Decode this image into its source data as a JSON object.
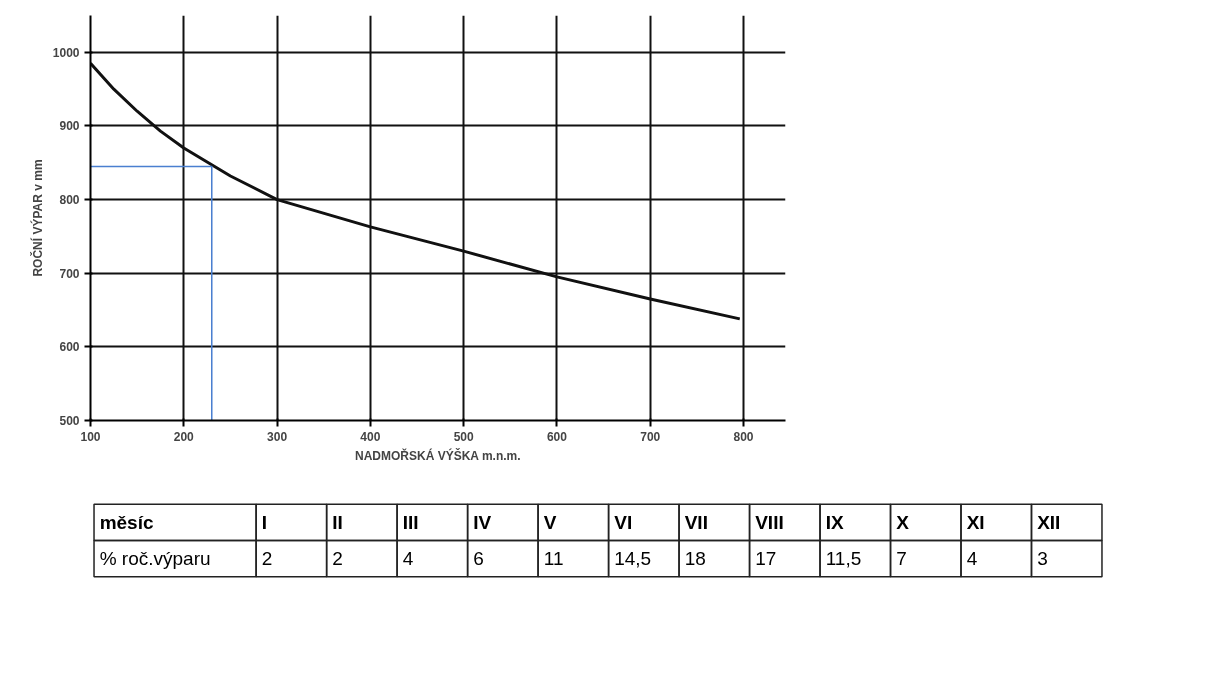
{
  "chart_data": [
    {
      "type": "line",
      "xlabel": "NADMOŘSKÁ VÝŠKA m.n.m.",
      "ylabel": "ROČNÍ VÝPAR v mm",
      "xlim": [
        100,
        845
      ],
      "ylim": [
        500,
        1050
      ],
      "xticks": [
        100,
        200,
        300,
        400,
        500,
        600,
        700,
        800
      ],
      "yticks": [
        500,
        600,
        700,
        800,
        900,
        1000
      ],
      "grid": true,
      "marker": "none",
      "line_style": "solid",
      "series": [
        {
          "color": "#111111",
          "x": [
            100,
            125,
            150,
            175,
            200,
            250,
            300,
            400,
            500,
            600,
            700,
            796
          ],
          "values": [
            985,
            950,
            920,
            893,
            870,
            832,
            800,
            763,
            730,
            695,
            665,
            638
          ]
        },
        {
          "color": "#4a7fd0",
          "x": [
            100,
            230,
            230
          ],
          "values": [
            845,
            845,
            500
          ]
        }
      ]
    },
    {
      "type": "other",
      "xlabel": "měsíc",
      "ylabel": "% roč.výparu",
      "categories": [
        "I",
        "II",
        "III",
        "IV",
        "V",
        "VI",
        "VII",
        "VIII",
        "IX",
        "X",
        "XI",
        "XII"
      ],
      "value_labels": [
        "2",
        "2",
        "4",
        "6",
        "11",
        "14,5",
        "18",
        "17",
        "11,5",
        "7",
        "4",
        "3"
      ]
    }
  ]
}
